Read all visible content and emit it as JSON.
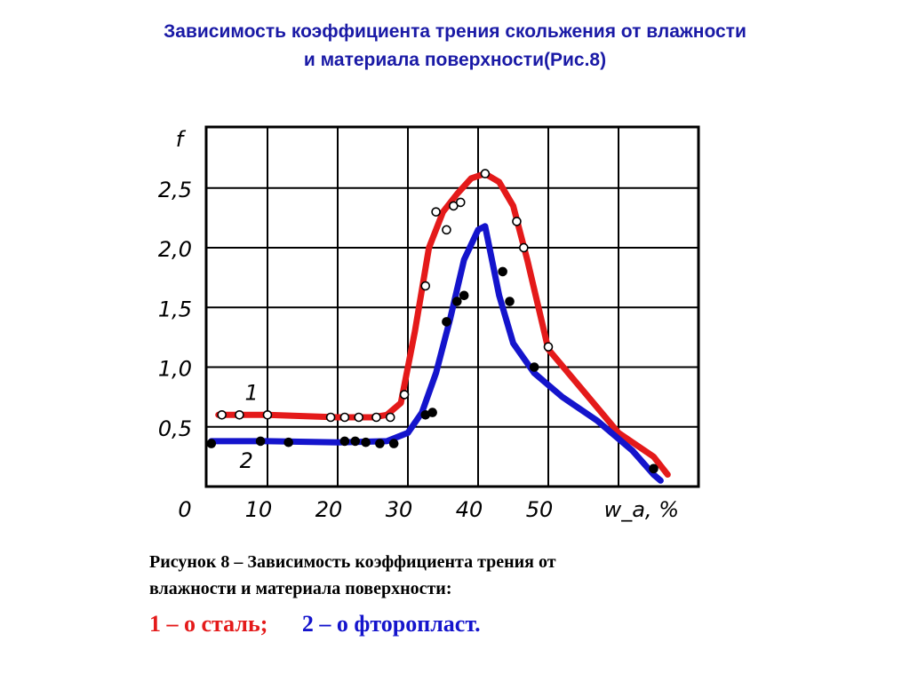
{
  "slide": {
    "title_line1": "Зависимость коэффициента трения скольжения от влажности",
    "title_line2": "и материала поверхности(Рис.8)"
  },
  "caption": {
    "line1": "Рисунок 8 – Зависимость коэффициента трения от",
    "line2": "влажности и материала поверхности:",
    "legend_1": "1 – о сталь;",
    "legend_2": "2 – о фторопласт."
  },
  "colors": {
    "title": "#1a1aa6",
    "series_1": "#e41a1a",
    "series_2": "#1414cc",
    "grid": "#000000"
  },
  "chart_data": {
    "type": "line",
    "xlabel": "w_a, %",
    "ylabel": "f",
    "xlim": [
      0,
      70
    ],
    "ylim": [
      0,
      3.0
    ],
    "x_ticks": [
      "0",
      "10",
      "20",
      "30",
      "40",
      "50"
    ],
    "y_ticks": [
      "0,5",
      "1,0",
      "1,5",
      "2,0",
      "2,5"
    ],
    "grid": true,
    "series": [
      {
        "name": "1",
        "color": "#e41a1a",
        "x": [
          3,
          10,
          20,
          25,
          27,
          29,
          31,
          33,
          35,
          37,
          39,
          41,
          43,
          45,
          47,
          50,
          55,
          60,
          65,
          67
        ],
        "y": [
          0.6,
          0.6,
          0.58,
          0.58,
          0.6,
          0.7,
          1.3,
          2.0,
          2.3,
          2.45,
          2.58,
          2.62,
          2.55,
          2.35,
          1.9,
          1.15,
          0.8,
          0.45,
          0.25,
          0.1
        ],
        "markers_x": [
          3.5,
          6,
          10,
          19,
          21,
          23,
          25.5,
          27.5,
          29.5,
          32.5,
          34,
          35.5,
          36.5,
          37.5,
          41,
          45.5,
          46.5,
          50
        ],
        "markers_y": [
          0.6,
          0.6,
          0.6,
          0.58,
          0.58,
          0.58,
          0.58,
          0.58,
          0.77,
          1.68,
          2.3,
          2.15,
          2.35,
          2.38,
          2.62,
          2.22,
          2.0,
          1.17
        ]
      },
      {
        "name": "2",
        "color": "#1414cc",
        "x": [
          2,
          10,
          20,
          27,
          30,
          32,
          34,
          36,
          38,
          40,
          41,
          43,
          45,
          48,
          52,
          57,
          62,
          65,
          66
        ],
        "y": [
          0.38,
          0.38,
          0.37,
          0.38,
          0.45,
          0.62,
          0.95,
          1.4,
          1.9,
          2.15,
          2.18,
          1.6,
          1.2,
          0.95,
          0.75,
          0.55,
          0.3,
          0.1,
          0.05
        ],
        "markers_x": [
          2,
          9,
          13,
          21,
          22.5,
          24,
          26,
          28,
          32.5,
          33.5,
          35.5,
          37,
          38,
          43.5,
          44.5,
          48,
          65
        ],
        "markers_y": [
          0.36,
          0.38,
          0.37,
          0.38,
          0.38,
          0.37,
          0.36,
          0.36,
          0.6,
          0.62,
          1.38,
          1.55,
          1.6,
          1.8,
          1.55,
          1.0,
          0.15
        ]
      }
    ],
    "curve_labels": [
      "1",
      "2"
    ]
  }
}
